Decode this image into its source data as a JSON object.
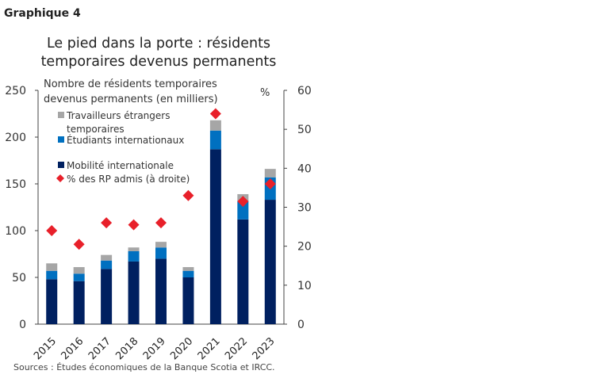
{
  "chart_label": "Graphique 4",
  "chart_data": {
    "type": "bar",
    "stacked": true,
    "title": "Le pied dans la porte : résidents temporaires devenus permanents",
    "title_lines": [
      "Le pied dans la porte : résidents",
      "temporaires devenus permanents"
    ],
    "ylabel_lines": [
      "Nombre de résidents temporaires",
      "devenus permanents (en milliers)"
    ],
    "y2label": "%",
    "categories": [
      "2015",
      "2016",
      "2017",
      "2018",
      "2019",
      "2020",
      "2021",
      "2022",
      "2023"
    ],
    "ylim": [
      0,
      250
    ],
    "y_ticks": [
      "0",
      "50",
      "100",
      "150",
      "200",
      "250"
    ],
    "y2lim": [
      0,
      60
    ],
    "y2_ticks": [
      "0",
      "10",
      "20",
      "30",
      "40",
      "50",
      "60"
    ],
    "grid": false,
    "legend_placement": "top-left",
    "series": [
      {
        "name": "Mobilité internationale",
        "type": "bar",
        "axis": "left",
        "color": "#002060",
        "values": [
          48,
          46,
          59,
          67,
          70,
          50,
          187,
          112,
          133
        ]
      },
      {
        "name": "Étudiants internationaux",
        "type": "bar",
        "axis": "left",
        "color": "#0070c0",
        "values": [
          9,
          8,
          9,
          11,
          12,
          7,
          20,
          20,
          24
        ]
      },
      {
        "name": "Travailleurs étrangers temporaires",
        "type": "bar",
        "axis": "left",
        "color": "#a6a6a6",
        "values": [
          8,
          7,
          6,
          4,
          6,
          4,
          11,
          7,
          9
        ]
      },
      {
        "name": "% des RP admis (à droite)",
        "type": "scatter",
        "marker": "diamond",
        "axis": "right",
        "color": "#e8202a",
        "values": [
          24,
          20.5,
          26,
          25.5,
          26,
          33,
          54,
          31.5,
          36
        ]
      }
    ],
    "legend": [
      {
        "lines": [
          "Travailleurs étrangers",
          "temporaires"
        ],
        "color": "#a6a6a6",
        "marker": "square"
      },
      {
        "lines": [
          "Étudiants internationaux"
        ],
        "color": "#0070c0",
        "marker": "square"
      },
      {
        "lines": [
          "Mobilité internationale"
        ],
        "color": "#002060",
        "marker": "square"
      },
      {
        "lines": [
          "% des RP admis (à droite)"
        ],
        "color": "#e8202a",
        "marker": "diamond"
      }
    ]
  },
  "source": "Sources : Études économiques de la Banque Scotia et IRCC."
}
